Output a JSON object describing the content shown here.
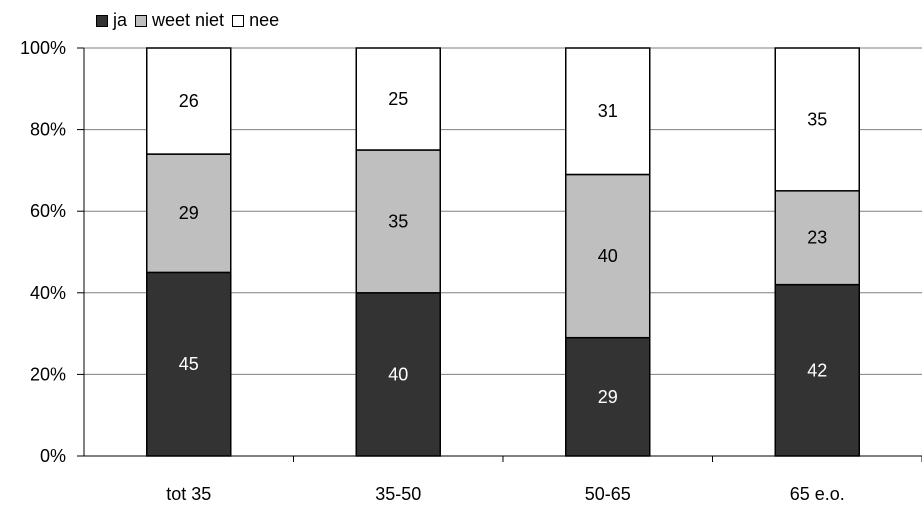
{
  "chart_data": {
    "type": "bar",
    "stacked": true,
    "categories": [
      "tot 35",
      "35-50",
      "50-65",
      "65 e.o."
    ],
    "series": [
      {
        "name": "ja",
        "values": [
          45,
          40,
          29,
          42
        ],
        "color": "#333333"
      },
      {
        "name": "weet niet",
        "values": [
          29,
          35,
          40,
          23
        ],
        "color": "#bfbfbf"
      },
      {
        "name": "nee",
        "values": [
          26,
          25,
          31,
          35
        ],
        "color": "#ffffff"
      }
    ],
    "yticks": [
      "0%",
      "20%",
      "40%",
      "60%",
      "80%",
      "100%"
    ],
    "ylim": [
      0,
      100
    ],
    "grid": true,
    "legend_position": "top-left"
  }
}
